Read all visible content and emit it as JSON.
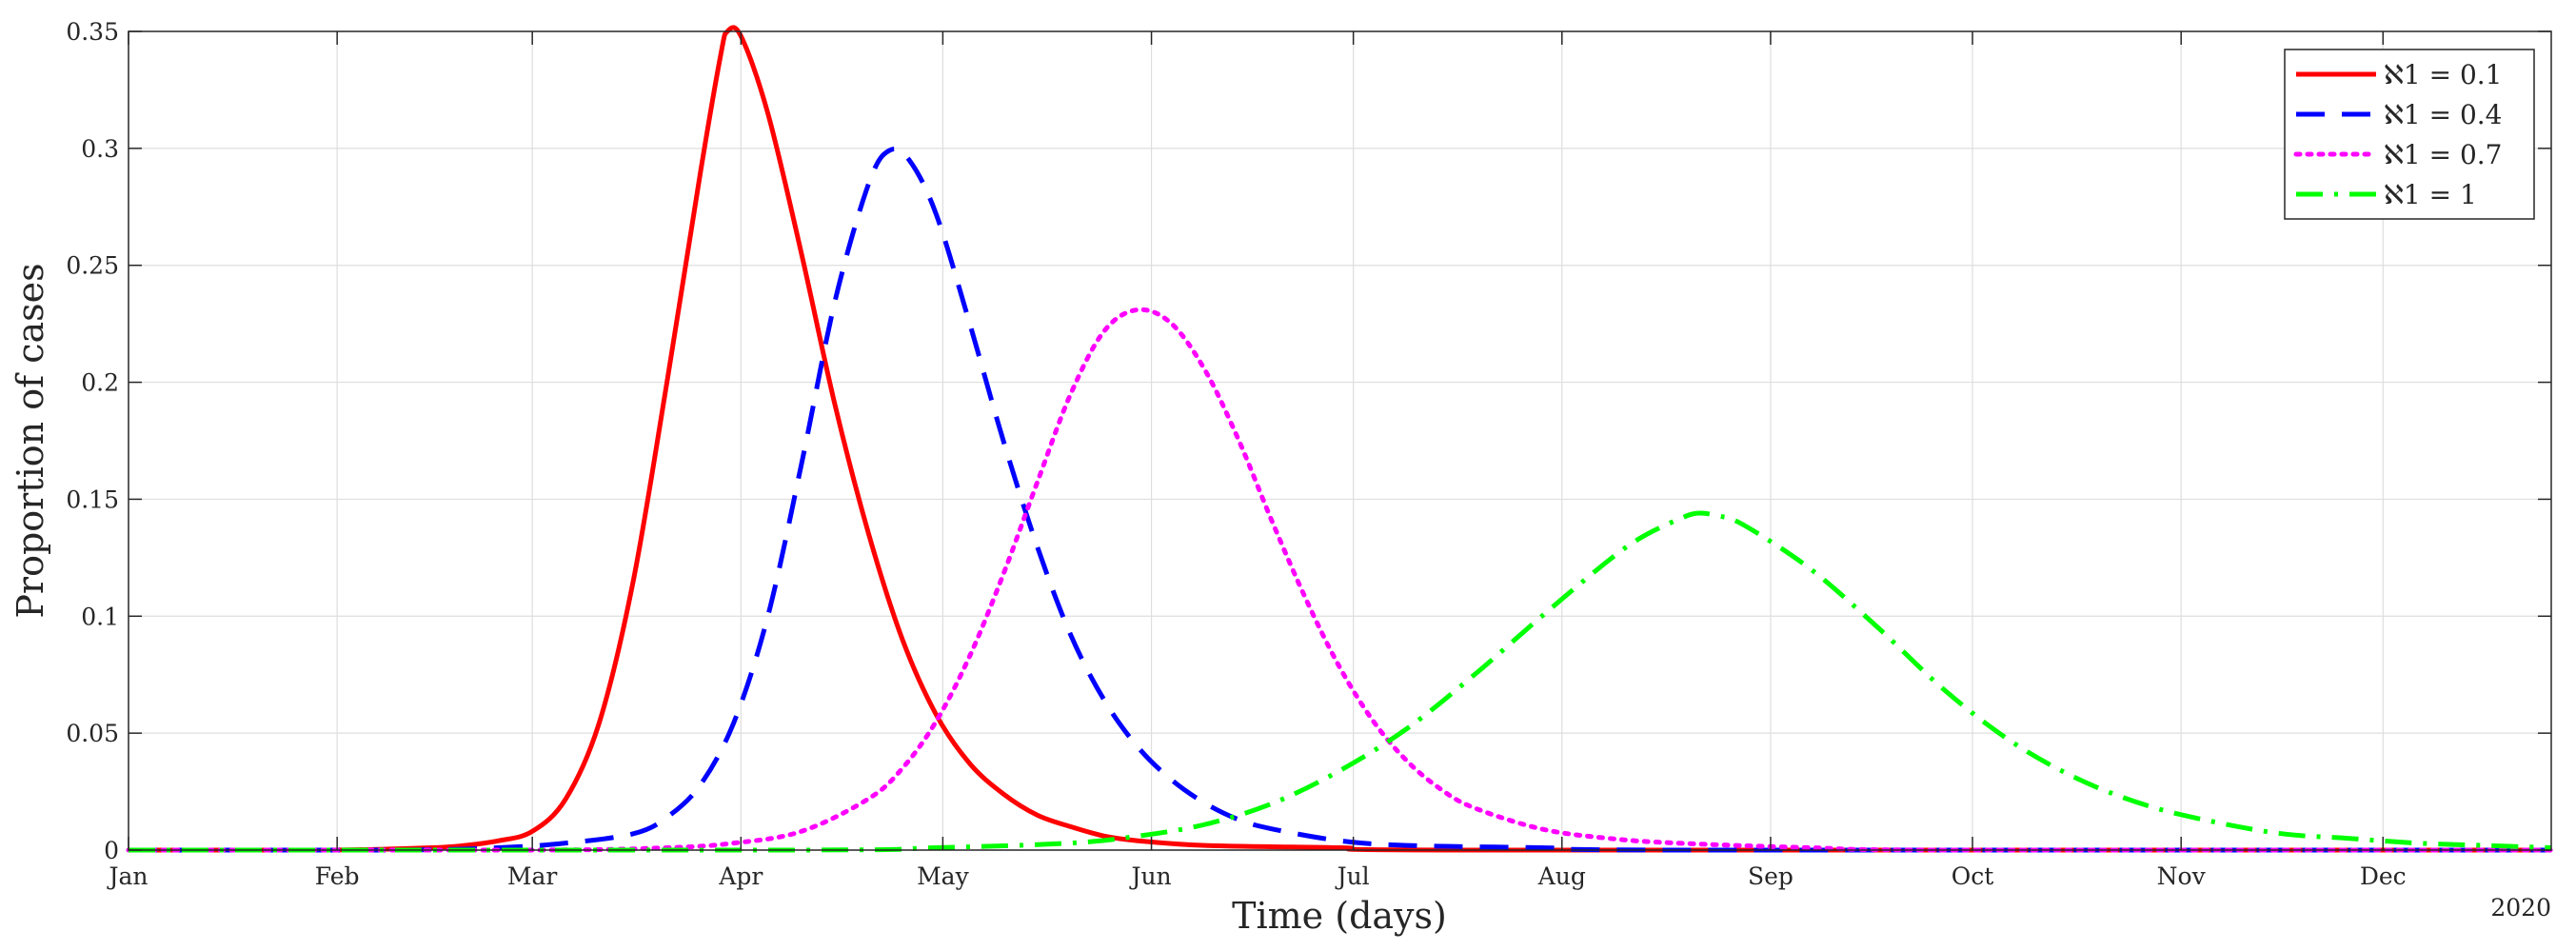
{
  "chart_data": {
    "type": "line",
    "xlabel": "Time (days)",
    "ylabel": "Proportion of cases",
    "year_label": "2020",
    "x_ticks": [
      "Jan",
      "Feb",
      "Mar",
      "Apr",
      "May",
      "Jun",
      "Jul",
      "Aug",
      "Sep",
      "Oct",
      "Nov",
      "Dec"
    ],
    "x_tick_days": [
      0,
      31,
      60,
      91,
      121,
      152,
      182,
      213,
      244,
      274,
      305,
      335
    ],
    "xlim": [
      0,
      360
    ],
    "ylim": [
      0,
      0.35
    ],
    "y_ticks": [
      0,
      0.05,
      0.1,
      0.15,
      0.2,
      0.25,
      0.3,
      0.35
    ],
    "y_tick_labels": [
      "0",
      "0.05",
      "0.1",
      "0.15",
      "0.2",
      "0.25",
      "0.3",
      "0.35"
    ],
    "grid": true,
    "legend_position": "top-right",
    "series": [
      {
        "name": "ℵ1 = 0.1",
        "color": "#ff0000",
        "style": "solid",
        "points": [
          [
            0,
            0
          ],
          [
            30,
            0
          ],
          [
            45,
            0.001
          ],
          [
            50,
            0.002
          ],
          [
            55,
            0.004
          ],
          [
            60,
            0.008
          ],
          [
            65,
            0.022
          ],
          [
            70,
            0.055
          ],
          [
            75,
            0.115
          ],
          [
            80,
            0.2
          ],
          [
            85,
            0.29
          ],
          [
            88,
            0.34
          ],
          [
            89,
            0.35
          ],
          [
            91,
            0.348
          ],
          [
            95,
            0.315
          ],
          [
            100,
            0.255
          ],
          [
            105,
            0.19
          ],
          [
            110,
            0.135
          ],
          [
            115,
            0.09
          ],
          [
            120,
            0.058
          ],
          [
            125,
            0.037
          ],
          [
            130,
            0.024
          ],
          [
            135,
            0.015
          ],
          [
            140,
            0.01
          ],
          [
            145,
            0.006
          ],
          [
            150,
            0.004
          ],
          [
            160,
            0.002
          ],
          [
            180,
            0.001
          ],
          [
            200,
            0
          ],
          [
            360,
            0
          ]
        ]
      },
      {
        "name": "ℵ1 = 0.4",
        "color": "#0000ff",
        "style": "dashed",
        "points": [
          [
            0,
            0
          ],
          [
            40,
            0
          ],
          [
            55,
            0.001
          ],
          [
            65,
            0.003
          ],
          [
            75,
            0.007
          ],
          [
            80,
            0.014
          ],
          [
            85,
            0.028
          ],
          [
            90,
            0.055
          ],
          [
            95,
            0.1
          ],
          [
            100,
            0.165
          ],
          [
            105,
            0.235
          ],
          [
            110,
            0.285
          ],
          [
            113,
            0.299
          ],
          [
            116,
            0.295
          ],
          [
            120,
            0.272
          ],
          [
            125,
            0.225
          ],
          [
            130,
            0.175
          ],
          [
            135,
            0.13
          ],
          [
            140,
            0.092
          ],
          [
            145,
            0.064
          ],
          [
            150,
            0.044
          ],
          [
            155,
            0.03
          ],
          [
            160,
            0.02
          ],
          [
            165,
            0.013
          ],
          [
            170,
            0.009
          ],
          [
            180,
            0.004
          ],
          [
            190,
            0.002
          ],
          [
            210,
            0.001
          ],
          [
            230,
            0
          ],
          [
            360,
            0
          ]
        ]
      },
      {
        "name": "ℵ1 = 0.7",
        "color": "#ff00ff",
        "style": "dotted",
        "points": [
          [
            0,
            0
          ],
          [
            60,
            0
          ],
          [
            80,
            0.001
          ],
          [
            90,
            0.003
          ],
          [
            100,
            0.008
          ],
          [
            110,
            0.022
          ],
          [
            115,
            0.035
          ],
          [
            120,
            0.055
          ],
          [
            125,
            0.083
          ],
          [
            130,
            0.118
          ],
          [
            135,
            0.157
          ],
          [
            140,
            0.195
          ],
          [
            145,
            0.222
          ],
          [
            150,
            0.231
          ],
          [
            155,
            0.225
          ],
          [
            160,
            0.205
          ],
          [
            165,
            0.175
          ],
          [
            170,
            0.14
          ],
          [
            175,
            0.107
          ],
          [
            180,
            0.078
          ],
          [
            185,
            0.055
          ],
          [
            190,
            0.038
          ],
          [
            195,
            0.026
          ],
          [
            200,
            0.018
          ],
          [
            210,
            0.009
          ],
          [
            220,
            0.005
          ],
          [
            230,
            0.003
          ],
          [
            250,
            0.001
          ],
          [
            270,
            0
          ],
          [
            360,
            0
          ]
        ]
      },
      {
        "name": "ℵ1 = 1",
        "color": "#00ff00",
        "style": "dashdot",
        "points": [
          [
            0,
            0
          ],
          [
            100,
            0
          ],
          [
            120,
            0.001
          ],
          [
            140,
            0.003
          ],
          [
            150,
            0.006
          ],
          [
            160,
            0.011
          ],
          [
            170,
            0.02
          ],
          [
            180,
            0.034
          ],
          [
            190,
            0.052
          ],
          [
            200,
            0.075
          ],
          [
            210,
            0.1
          ],
          [
            220,
            0.124
          ],
          [
            225,
            0.134
          ],
          [
            230,
            0.141
          ],
          [
            233,
            0.144
          ],
          [
            236,
            0.143
          ],
          [
            240,
            0.139
          ],
          [
            250,
            0.12
          ],
          [
            260,
            0.095
          ],
          [
            270,
            0.068
          ],
          [
            280,
            0.046
          ],
          [
            290,
            0.03
          ],
          [
            300,
            0.019
          ],
          [
            310,
            0.012
          ],
          [
            320,
            0.007
          ],
          [
            330,
            0.005
          ],
          [
            340,
            0.003
          ],
          [
            350,
            0.002
          ],
          [
            360,
            0.001
          ]
        ]
      }
    ]
  }
}
